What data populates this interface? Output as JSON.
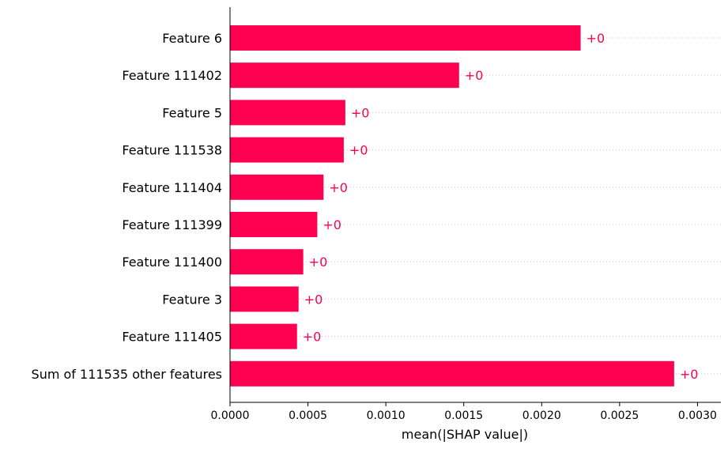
{
  "chart_data": {
    "type": "bar",
    "orientation": "horizontal",
    "categories": [
      "Feature 6",
      "Feature 111402",
      "Feature 5",
      "Feature 111538",
      "Feature 111404",
      "Feature 111399",
      "Feature 111400",
      "Feature 3",
      "Feature 111405",
      "Sum of 111535 other features"
    ],
    "values": [
      0.00225,
      0.00147,
      0.00074,
      0.00073,
      0.0006,
      0.00056,
      0.00047,
      0.00044,
      0.00043,
      0.00285
    ],
    "data_labels": [
      "+0",
      "+0",
      "+0",
      "+0",
      "+0",
      "+0",
      "+0",
      "+0",
      "+0",
      "+0"
    ],
    "xlabel": "mean(|SHAP value|)",
    "xlim": [
      0,
      0.00315
    ],
    "x_ticks": [
      0.0,
      0.0005,
      0.001,
      0.0015,
      0.002,
      0.0025,
      0.003
    ],
    "x_tick_labels": [
      "0.0000",
      "0.0005",
      "0.0010",
      "0.0015",
      "0.0020",
      "0.0025",
      "0.0030"
    ],
    "grid": "horizontal dotted row guides",
    "colors": {
      "bar": "#ff0051",
      "label": "#ff0051",
      "grid": "#cccccc",
      "axis": "#000000"
    }
  }
}
